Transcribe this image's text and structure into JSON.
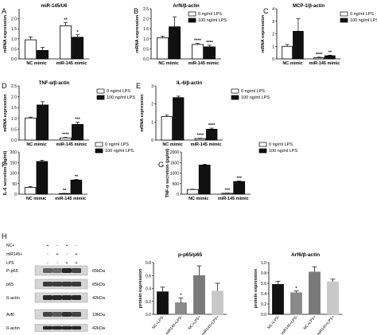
{
  "figure": {
    "colors": {
      "control": "#ffffff",
      "lps": "#111111",
      "stroke": "#000000"
    }
  },
  "chart_data": [
    {
      "panel": "A",
      "type": "bar",
      "title": "miR-145/U6",
      "ylabel": "mRNA expression",
      "ylim": [
        0,
        2.5
      ],
      "yticks": [
        "0.0",
        "0.5",
        "1.0",
        "1.5",
        "2.0"
      ],
      "categories": [
        "NC mimic",
        "miR-145 mimic"
      ],
      "legend": [
        "0 ng/ml LPS",
        "100 ng/ml LPS"
      ],
      "series": [
        {
          "name": "0 ng/ml LPS",
          "values": [
            0.95,
            1.65
          ],
          "errors": [
            0.15,
            0.15
          ],
          "sig": [
            "",
            "**"
          ]
        },
        {
          "name": "100 ng/ml LPS",
          "values": [
            0.42,
            1.08
          ],
          "errors": [
            0.15,
            0.12
          ],
          "sig": [
            "",
            "*"
          ]
        }
      ]
    },
    {
      "panel": "B",
      "type": "bar",
      "title": "Arf6/β-actin",
      "ylabel": "mRNA expression",
      "ylim": [
        0,
        2.5
      ],
      "yticks": [
        "0.0",
        "0.5",
        "1.0",
        "1.5",
        "2.0",
        "2.5"
      ],
      "categories": [
        "NC mimic",
        "miR-145 mimic"
      ],
      "legend": [
        "0 ng/ml LPS",
        "100 ng/ml LPS"
      ],
      "series": [
        {
          "name": "0 ng/ml LPS",
          "values": [
            1.05,
            0.72
          ],
          "errors": [
            0.08,
            0.05
          ],
          "sig": [
            "",
            "****"
          ]
        },
        {
          "name": "100 ng/ml LPS",
          "values": [
            1.6,
            0.6
          ],
          "errors": [
            0.5,
            0.08
          ],
          "sig": [
            "",
            "****"
          ]
        }
      ]
    },
    {
      "panel": "C",
      "type": "bar",
      "title": "MCP-1/β-actin",
      "ylabel": "mRNA expression",
      "ylim": [
        0,
        4
      ],
      "yticks": [
        "0",
        "1",
        "2",
        "3",
        "4"
      ],
      "categories": [
        "NC mimic",
        "miR-145 mimic"
      ],
      "legend": [
        "0 ng/ml LPS",
        "100 ng/ml LPS"
      ],
      "series": [
        {
          "name": "0 ng/ml LPS",
          "values": [
            1.0,
            0.1
          ],
          "errors": [
            0.15,
            0.04
          ],
          "sig": [
            "",
            "****"
          ]
        },
        {
          "name": "100 ng/ml LPS",
          "values": [
            2.2,
            0.25
          ],
          "errors": [
            1.0,
            0.05
          ],
          "sig": [
            "",
            "**"
          ]
        }
      ]
    },
    {
      "panel": "D",
      "type": "bar",
      "title": "TNF-α/β-actin",
      "ylabel": "mRNA expression",
      "ylim": [
        0,
        2.5
      ],
      "yticks": [
        "0.0",
        "0.5",
        "1.0",
        "1.5",
        "2.0",
        "2.5"
      ],
      "categories": [
        "NC mimic",
        "miR-145 mimic"
      ],
      "legend": [
        "0 ng/ml LPS",
        "100 ng/ml LPS"
      ],
      "series": [
        {
          "name": "0 ng/ml LPS",
          "values": [
            1.02,
            0.1
          ],
          "errors": [
            0.04,
            0.02
          ],
          "sig": [
            "",
            "****"
          ]
        },
        {
          "name": "100 ng/ml LPS",
          "values": [
            1.62,
            0.72
          ],
          "errors": [
            0.15,
            0.1
          ],
          "sig": [
            "",
            "***"
          ]
        }
      ]
    },
    {
      "panel": "E",
      "type": "bar",
      "title": "IL-6/β-actin",
      "ylabel": "mRNA expression",
      "ylim": [
        0,
        3
      ],
      "yticks": [
        "0",
        "1",
        "2",
        "3"
      ],
      "categories": [
        "NC mimic",
        "miR-145 mimic"
      ],
      "legend": [
        "0 ng/ml LPS",
        "100 ng/ml LPS"
      ],
      "series": [
        {
          "name": "0 ng/ml LPS",
          "values": [
            1.3,
            0.08
          ],
          "errors": [
            0.08,
            0.02
          ],
          "sig": [
            "",
            "****"
          ]
        },
        {
          "name": "100 ng/ml LPS",
          "values": [
            2.35,
            0.6
          ],
          "errors": [
            0.08,
            0.06
          ],
          "sig": [
            "",
            "****"
          ]
        }
      ]
    },
    {
      "panel": "F",
      "type": "bar",
      "title": "",
      "ylabel": "IL-6 secretion (pg/ml)",
      "ylim": [
        0,
        200
      ],
      "yticks": [
        "0",
        "50",
        "100",
        "150",
        "200"
      ],
      "categories": [
        "NC mimic",
        "miR-145 mimic"
      ],
      "legend": [
        "0 ng/ml LPS",
        "100 ng/ml LPS"
      ],
      "series": [
        {
          "name": "0 ng/ml LPS",
          "values": [
            32,
            3
          ],
          "errors": [
            4,
            1
          ],
          "sig": [
            "",
            "**"
          ]
        },
        {
          "name": "100 ng/ml LPS",
          "values": [
            155,
            67
          ],
          "errors": [
            6,
            3
          ],
          "sig": [
            "",
            "**"
          ]
        }
      ]
    },
    {
      "panel": "G",
      "type": "bar",
      "title": "",
      "ylabel": "TNF-α secretion (pg/ml)",
      "ylim": [
        0,
        2000
      ],
      "yticks": [
        "0",
        "500",
        "1000",
        "1500",
        "2000"
      ],
      "categories": [
        "NC mimic",
        "miR-145 mimic"
      ],
      "legend": [
        "0 ng/ml LPS",
        "100 ng/ml LPS"
      ],
      "series": [
        {
          "name": "0 ng/ml LPS",
          "values": [
            220,
            40
          ],
          "errors": [
            15,
            10
          ],
          "sig": [
            "",
            "***"
          ]
        },
        {
          "name": "100 ng/ml LPS",
          "values": [
            1380,
            600
          ],
          "errors": [
            40,
            25
          ],
          "sig": [
            "",
            "***"
          ]
        }
      ]
    },
    {
      "panel": "H-p65",
      "type": "bar",
      "title": "p-p65/p65",
      "ylabel": "protein expression",
      "ylim": [
        0,
        0.8
      ],
      "yticks": [
        "0.0",
        "0.2",
        "0.4",
        "0.6",
        "0.8"
      ],
      "categories": [
        "NC+LPS-",
        "miR145+LPS-",
        "NC+LPS+",
        "miR145+LPS+"
      ],
      "series": [
        {
          "values": [
            0.35,
            0.18,
            0.6,
            0.36
          ],
          "errors": [
            0.07,
            0.07,
            0.15,
            0.12
          ],
          "sig": [
            "",
            "*",
            "",
            ""
          ],
          "colors": [
            "#111111",
            "#8a8a8a",
            "#7a7a7a",
            "#c8c8c8"
          ]
        }
      ]
    },
    {
      "panel": "H-arf6",
      "type": "bar",
      "title": "Arf6/β-actin",
      "ylabel": "protein expression",
      "ylim": [
        0,
        1.0
      ],
      "yticks": [
        "0.0",
        "0.2",
        "0.4",
        "0.6",
        "0.8",
        "1.0"
      ],
      "categories": [
        "NC+LPS-",
        "miR145+LPS-",
        "NC+LPS+",
        "miR145+LPS+"
      ],
      "series": [
        {
          "values": [
            0.58,
            0.42,
            0.82,
            0.63
          ],
          "errors": [
            0.06,
            0.03,
            0.1,
            0.05
          ],
          "sig": [
            "",
            "*",
            "",
            ""
          ],
          "colors": [
            "#111111",
            "#8a8a8a",
            "#7a7a7a",
            "#c8c8c8"
          ]
        }
      ]
    }
  ],
  "blot": {
    "panel": "H",
    "conditions": [
      {
        "label": "NC+",
        "marks": [
          "+",
          "-",
          "+",
          "-"
        ]
      },
      {
        "label": "miR145+",
        "marks": [
          "-",
          "+",
          "-",
          "+"
        ]
      },
      {
        "label": "LPS",
        "marks": [
          "-",
          "-",
          "+",
          "+"
        ]
      }
    ],
    "bands": [
      {
        "label": "P-p65",
        "size": "65kDa",
        "intensity": [
          0.55,
          0.5,
          0.85,
          0.7
        ]
      },
      {
        "label": "p65",
        "size": "65kDa",
        "intensity": [
          0.75,
          0.75,
          0.75,
          0.75
        ]
      },
      {
        "label": "ß-actin",
        "size": "42kDa",
        "intensity": [
          0.85,
          0.85,
          0.85,
          0.85
        ]
      },
      {
        "label": "Arf6",
        "size": "19kDa",
        "intensity": [
          0.7,
          0.6,
          0.8,
          0.7
        ]
      },
      {
        "label": "ß-actin",
        "size": "42kDa",
        "intensity": [
          0.85,
          0.85,
          0.85,
          0.85
        ]
      }
    ]
  }
}
